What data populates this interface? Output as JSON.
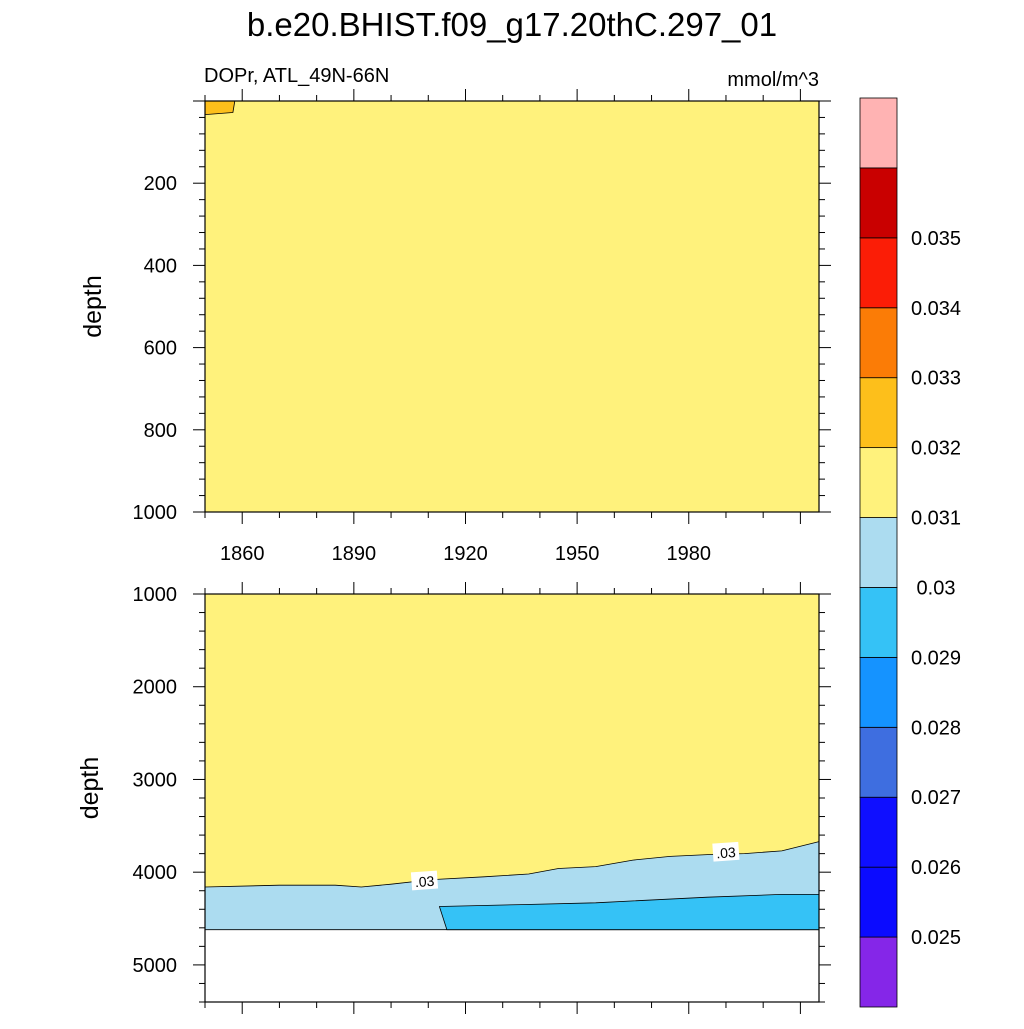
{
  "title": "b.e20.BHIST.f09_g17.20thC.297_01",
  "chart_data": {
    "type": "heatmap",
    "title": "b.e20.BHIST.f09_g17.20thC.297_01",
    "variable_label": "DOPr, ATL_49N-66N",
    "units_label": "mmol/m^3",
    "x": {
      "label": "",
      "range": [
        1850,
        2015
      ],
      "ticks": [
        1860,
        1890,
        1920,
        1950,
        1980
      ],
      "tick_labels": [
        "1860",
        "1890",
        "1920",
        "1950",
        "1980"
      ]
    },
    "panels": [
      {
        "name": "upper",
        "ylabel": "depth",
        "ylim": [
          0,
          1000
        ],
        "y_inverted": true,
        "y_ticks": [
          200,
          400,
          600,
          800,
          1000
        ],
        "y_tick_labels": [
          "200",
          "400",
          "600",
          "800",
          "1000"
        ],
        "background_band": "0.03-0.031",
        "regions": [
          {
            "band": "0.031-0.032",
            "polygon": [
              [
                1850,
                0
              ],
              [
                1850,
                33
              ],
              [
                1857.5,
                28
              ],
              [
                1858,
                0
              ]
            ]
          }
        ],
        "contour_labels": []
      },
      {
        "name": "lower",
        "ylabel": "depth",
        "ylim": [
          1000,
          5400
        ],
        "y_inverted": true,
        "data_bottom": 4620,
        "y_ticks": [
          1000,
          2000,
          3000,
          4000,
          5000
        ],
        "y_tick_labels": [
          "1000",
          "2000",
          "3000",
          "4000",
          "5000"
        ],
        "background_band": "0.03-0.031",
        "regions": [
          {
            "band": "0.029-0.03",
            "polygon": [
              [
                1850,
                4160
              ],
              [
                1870,
                4140
              ],
              [
                1885,
                4140
              ],
              [
                1892,
                4160
              ],
              [
                1900,
                4130
              ],
              [
                1911,
                4080
              ],
              [
                1925,
                4050
              ],
              [
                1937,
                4020
              ],
              [
                1945,
                3960
              ],
              [
                1955,
                3940
              ],
              [
                1965,
                3870
              ],
              [
                1975,
                3830
              ],
              [
                1985,
                3810
              ],
              [
                1995,
                3800
              ],
              [
                2005,
                3770
              ],
              [
                2015,
                3670
              ],
              [
                2015,
                4620
              ],
              [
                1850,
                4620
              ]
            ]
          },
          {
            "band": "0.028-0.029",
            "polygon": [
              [
                1913,
                4370
              ],
              [
                1935,
                4350
              ],
              [
                1955,
                4330
              ],
              [
                1985,
                4270
              ],
              [
                2005,
                4240
              ],
              [
                2015,
                4240
              ],
              [
                2015,
                4620
              ],
              [
                1915,
                4620
              ]
            ]
          }
        ],
        "contour_labels": [
          {
            "text": ".03",
            "x": 1909,
            "y": 4100
          },
          {
            "text": ".03",
            "x": 1990,
            "y": 3790
          }
        ]
      }
    ],
    "colorbar": {
      "levels": [
        0.025,
        0.026,
        0.027,
        0.028,
        0.029,
        0.03,
        0.031,
        0.032,
        0.033,
        0.034,
        0.035
      ],
      "labels": [
        "0.025",
        "0.026",
        "0.027",
        "0.028",
        "0.029",
        "0.03",
        "0.031",
        "0.032",
        "0.033",
        "0.034",
        "0.035"
      ],
      "colors": [
        "#8526e8",
        "#0b0bff",
        "#0f0fff",
        "#3e6ee0",
        "#1593ff",
        "#35c2f6",
        "#acdcf0",
        "#fff27c",
        "#fdbf1b",
        "#fb7c06",
        "#fb1d06",
        "#c90000",
        "#ffb3b3"
      ],
      "band_colors": {
        "0.028-0.029": "#35c2f6",
        "0.029-0.03": "#acdcf0",
        "0.03-0.031": "#fff27c",
        "0.031-0.032": "#fdbf1b"
      }
    }
  }
}
